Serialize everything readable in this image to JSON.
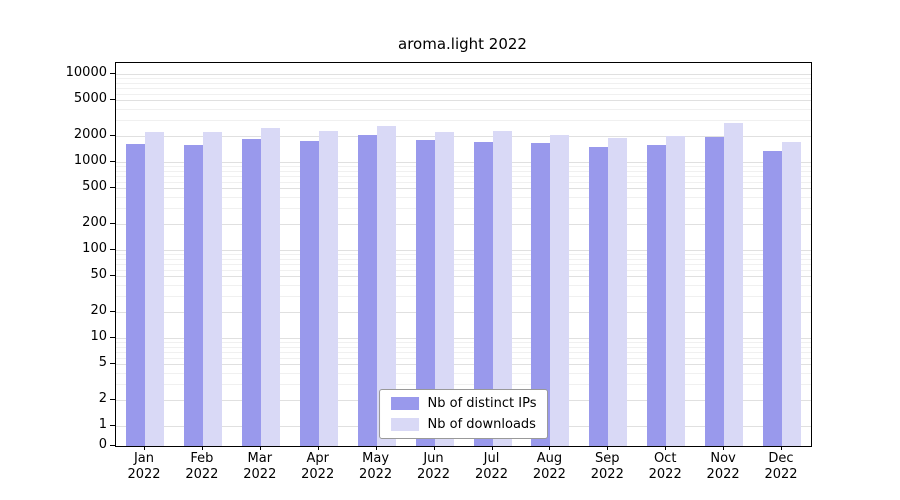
{
  "chart_data": {
    "type": "bar",
    "title": "aroma.light 2022",
    "categories": [
      "Jan",
      "Feb",
      "Mar",
      "Apr",
      "May",
      "Jun",
      "Jul",
      "Aug",
      "Sep",
      "Oct",
      "Nov",
      "Dec"
    ],
    "category_year": "2022",
    "series": [
      {
        "name": "Nb of distinct IPs",
        "color": "#9999ec",
        "values": [
          1600,
          1550,
          1850,
          1750,
          2050,
          1800,
          1700,
          1650,
          1500,
          1550,
          1950,
          1350
        ]
      },
      {
        "name": "Nb of downloads",
        "color": "#d9d9f6",
        "values": [
          2200,
          2200,
          2450,
          2250,
          2550,
          2200,
          2250,
          2050,
          1900,
          2000,
          2750,
          1700
        ]
      }
    ],
    "yscale": "log",
    "yticks": [
      0,
      1,
      2,
      5,
      10,
      20,
      50,
      100,
      200,
      500,
      1000,
      2000,
      5000,
      10000
    ],
    "ylim": [
      0,
      10000
    ],
    "grid": true,
    "legend_position": "bottom-center"
  }
}
